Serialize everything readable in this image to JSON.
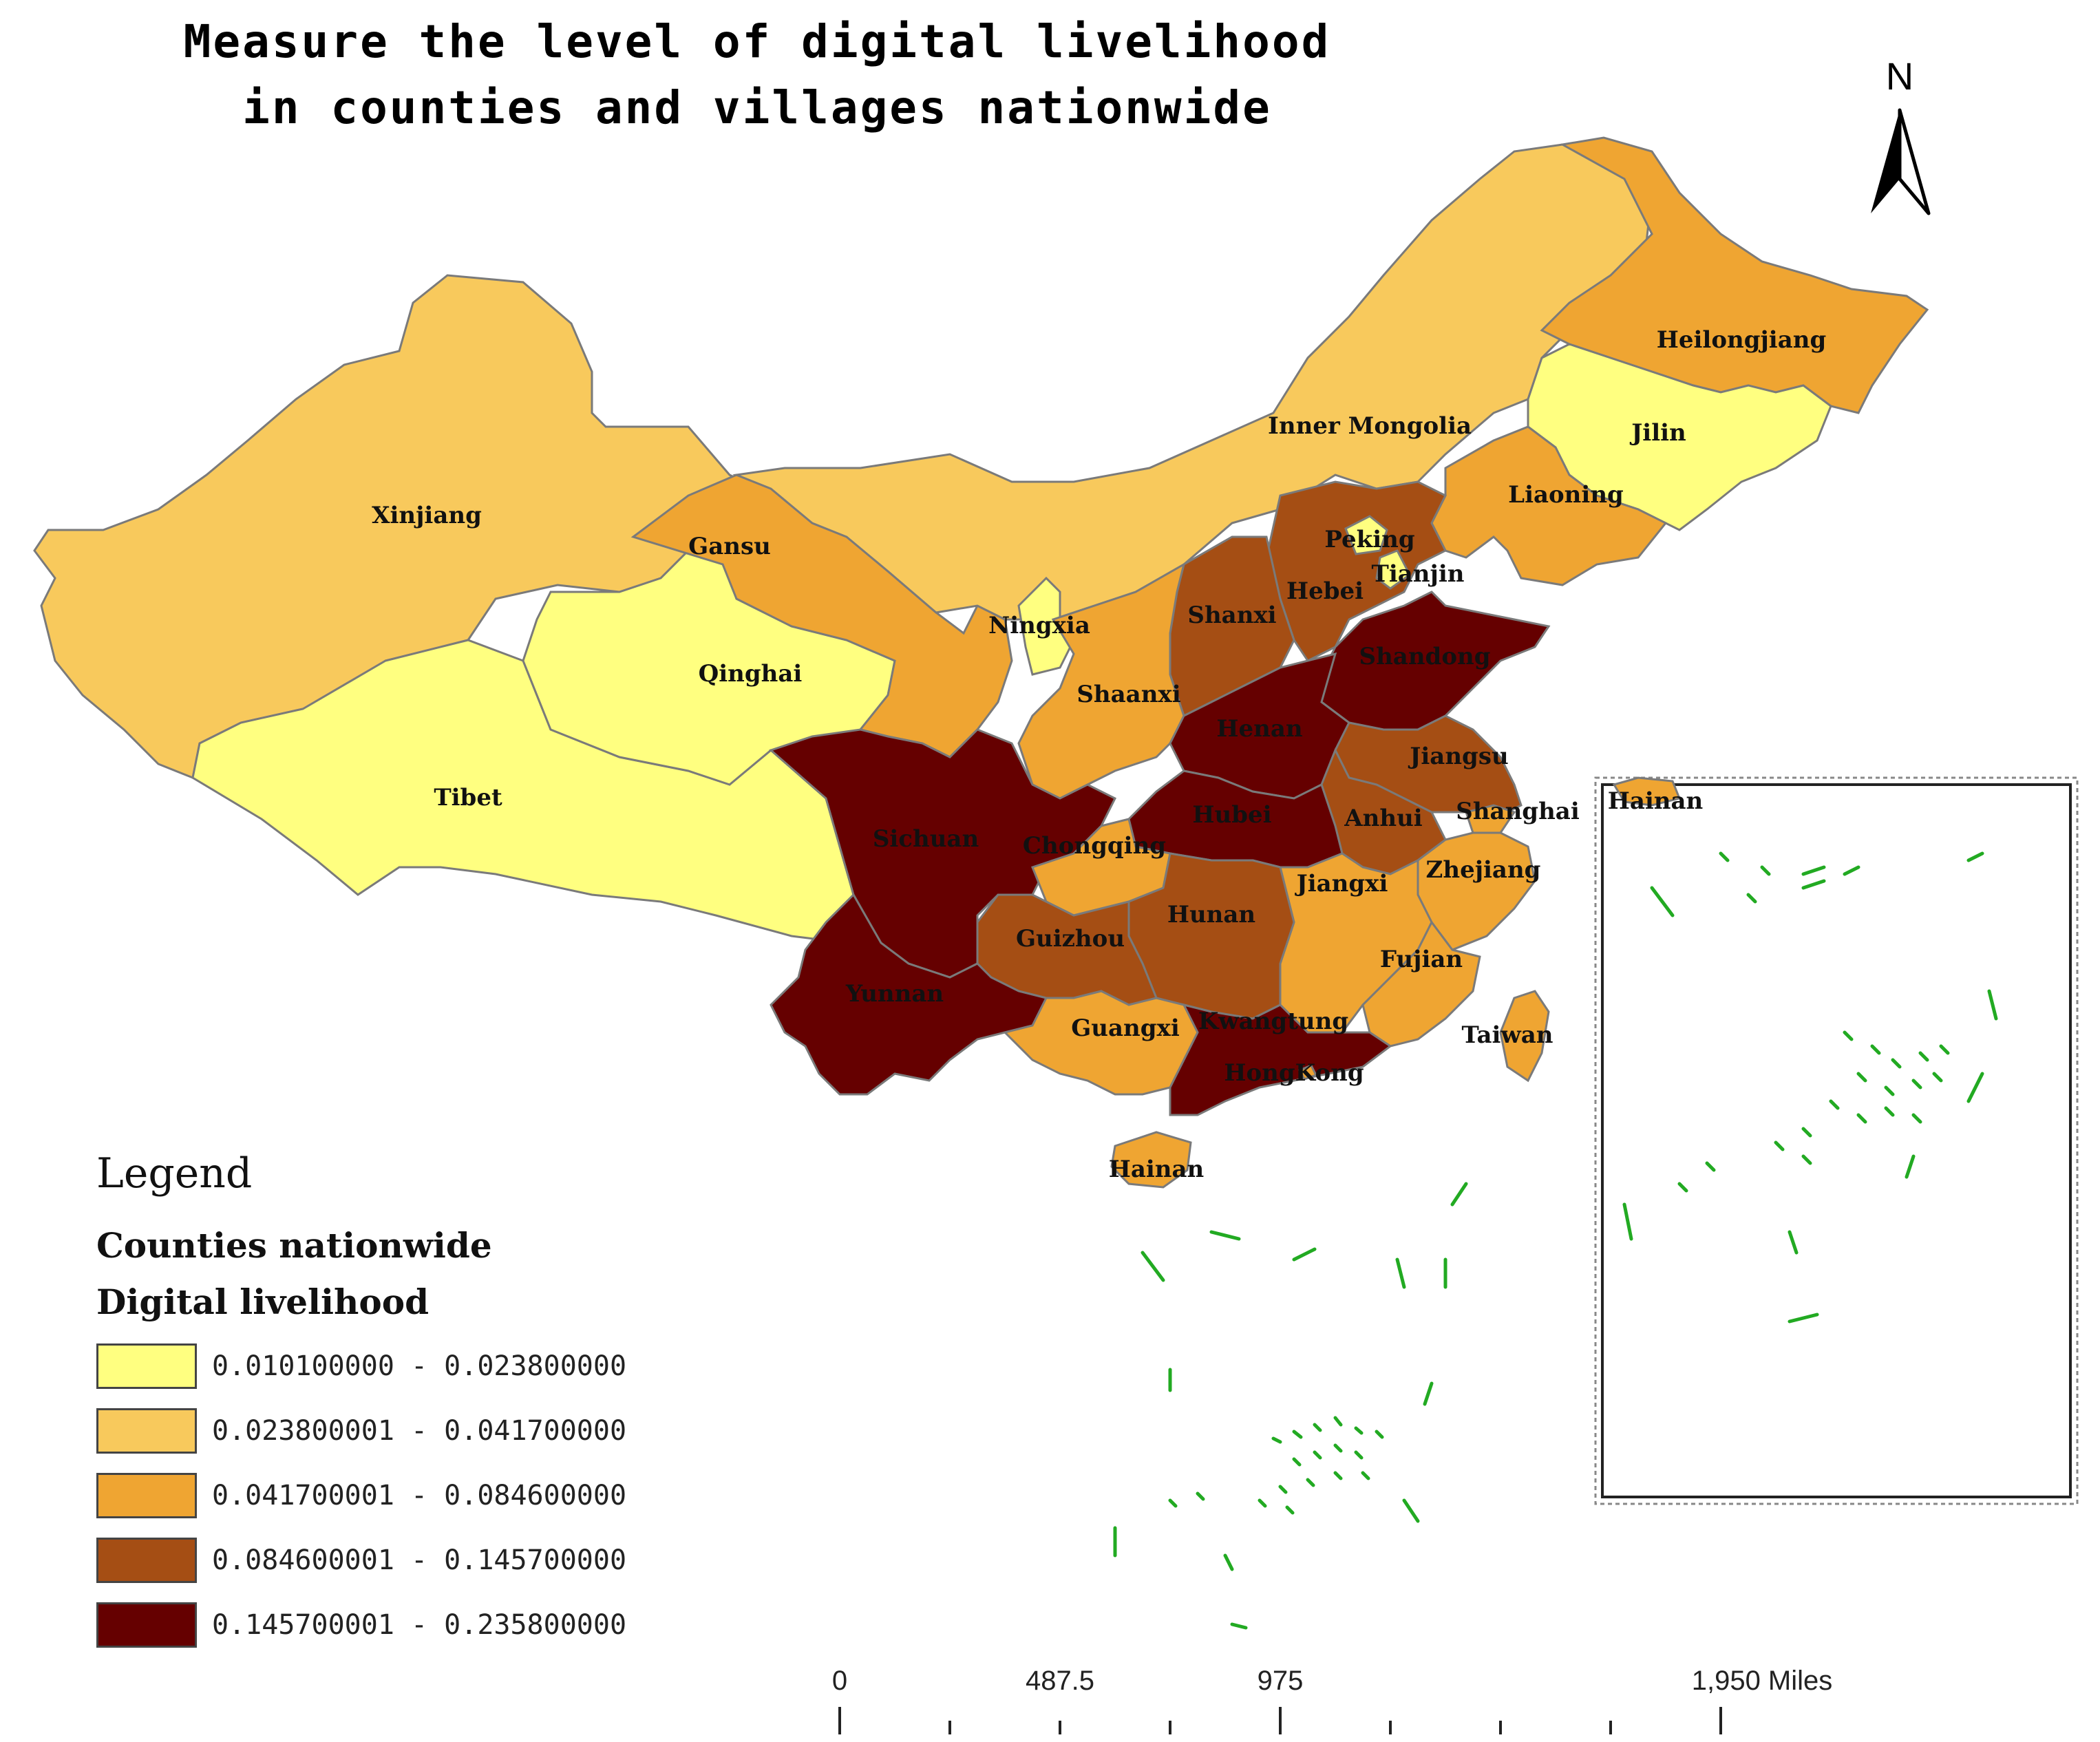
{
  "title": {
    "line1": "Measure the level of digital livelihood",
    "line2": "in counties and villages nationwide"
  },
  "north_arrow": {
    "label": "N"
  },
  "colors": {
    "class1": "#FFFF80",
    "class2": "#F8C95C",
    "class3": "#EFA532",
    "class4": "#A54E14",
    "class5": "#650000",
    "coastline": "#22AA22",
    "border": "#7A7A7A"
  },
  "provinces": [
    {
      "name": "Xinjiang",
      "class": 2
    },
    {
      "name": "Tibet",
      "class": 1
    },
    {
      "name": "Qinghai",
      "class": 1
    },
    {
      "name": "Gansu",
      "class": 3
    },
    {
      "name": "Inner Mongolia",
      "class": 2
    },
    {
      "name": "Heilongjiang",
      "class": 3
    },
    {
      "name": "Jilin",
      "class": 1
    },
    {
      "name": "Liaoning",
      "class": 3
    },
    {
      "name": "Peking",
      "class": 1
    },
    {
      "name": "Tianjin",
      "class": 1
    },
    {
      "name": "Hebei",
      "class": 4
    },
    {
      "name": "Shanxi",
      "class": 4
    },
    {
      "name": "Ningxia",
      "class": 1
    },
    {
      "name": "Shaanxi",
      "class": 3
    },
    {
      "name": "Shandong",
      "class": 5
    },
    {
      "name": "Henan",
      "class": 5
    },
    {
      "name": "Jiangsu",
      "class": 4
    },
    {
      "name": "Anhui",
      "class": 4
    },
    {
      "name": "Shanghai",
      "class": 3
    },
    {
      "name": "Hubei",
      "class": 5
    },
    {
      "name": "Sichuan",
      "class": 5
    },
    {
      "name": "Chongqing",
      "class": 3
    },
    {
      "name": "Zhejiang",
      "class": 3
    },
    {
      "name": "Jiangxi",
      "class": 3
    },
    {
      "name": "Hunan",
      "class": 4
    },
    {
      "name": "Guizhou",
      "class": 4
    },
    {
      "name": "Yunnan",
      "class": 5
    },
    {
      "name": "Fujian",
      "class": 3
    },
    {
      "name": "Guangxi",
      "class": 3
    },
    {
      "name": "Kwangtung",
      "class": 5
    },
    {
      "name": "HongKong",
      "class": 3
    },
    {
      "name": "Taiwan",
      "class": 3
    },
    {
      "name": "Hainan",
      "class": 3
    }
  ],
  "inset": {
    "label": "Hainan"
  },
  "legend": {
    "heading": "Legend",
    "layer": "Counties nationwide",
    "field": "Digital livelihood",
    "classes": [
      {
        "range": "0.010100000 - 0.023800000",
        "color": "#FFFF80"
      },
      {
        "range": "0.023800001 - 0.041700000",
        "color": "#F8C95C"
      },
      {
        "range": "0.041700001 - 0.084600000",
        "color": "#EFA532"
      },
      {
        "range": "0.084600001 - 0.145700000",
        "color": "#A54E14"
      },
      {
        "range": "0.145700001 - 0.235800000",
        "color": "#650000"
      }
    ]
  },
  "scale_bar": {
    "labels": [
      "0",
      "487.5",
      "975",
      "1,950 Miles"
    ]
  }
}
